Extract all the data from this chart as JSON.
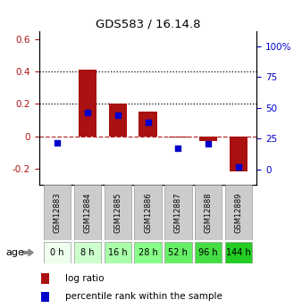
{
  "title": "GDS583 / 16.14.8",
  "samples": [
    "GSM12883",
    "GSM12884",
    "GSM12885",
    "GSM12886",
    "GSM12887",
    "GSM12888",
    "GSM12889"
  ],
  "ages": [
    "0 h",
    "8 h",
    "16 h",
    "28 h",
    "52 h",
    "96 h",
    "144 h"
  ],
  "log_ratios": [
    0.0,
    0.41,
    0.2,
    0.15,
    -0.01,
    -0.03,
    -0.22
  ],
  "percentile_ranks_pct": [
    21.5,
    46.5,
    44.0,
    38.5,
    17.0,
    20.5,
    2.0
  ],
  "bar_color": "#aa1111",
  "dot_color": "#0000cc",
  "ylim_left": [
    -0.3,
    0.65
  ],
  "ylim_right": [
    -12.5,
    112.5
  ],
  "yticks_left": [
    -0.2,
    0.0,
    0.2,
    0.4,
    0.6
  ],
  "ytick_labels_left": [
    "-0.2",
    "0",
    "0.2",
    "0.4",
    "0.6"
  ],
  "yticks_right": [
    0,
    25,
    50,
    75,
    100
  ],
  "ytick_labels_right": [
    "0",
    "25",
    "50",
    "75",
    "100%"
  ],
  "hline_dotted": [
    0.2,
    0.4
  ],
  "hline_dashed": 0.0,
  "age_colors": [
    "#eeffee",
    "#ccffcc",
    "#aaffaa",
    "#88ff88",
    "#66ee66",
    "#44dd44",
    "#22cc22"
  ],
  "sample_bg_color": "#cccccc",
  "border_color": "#999999",
  "legend_red_label": "log ratio",
  "legend_blue_label": "percentile rank within the sample"
}
